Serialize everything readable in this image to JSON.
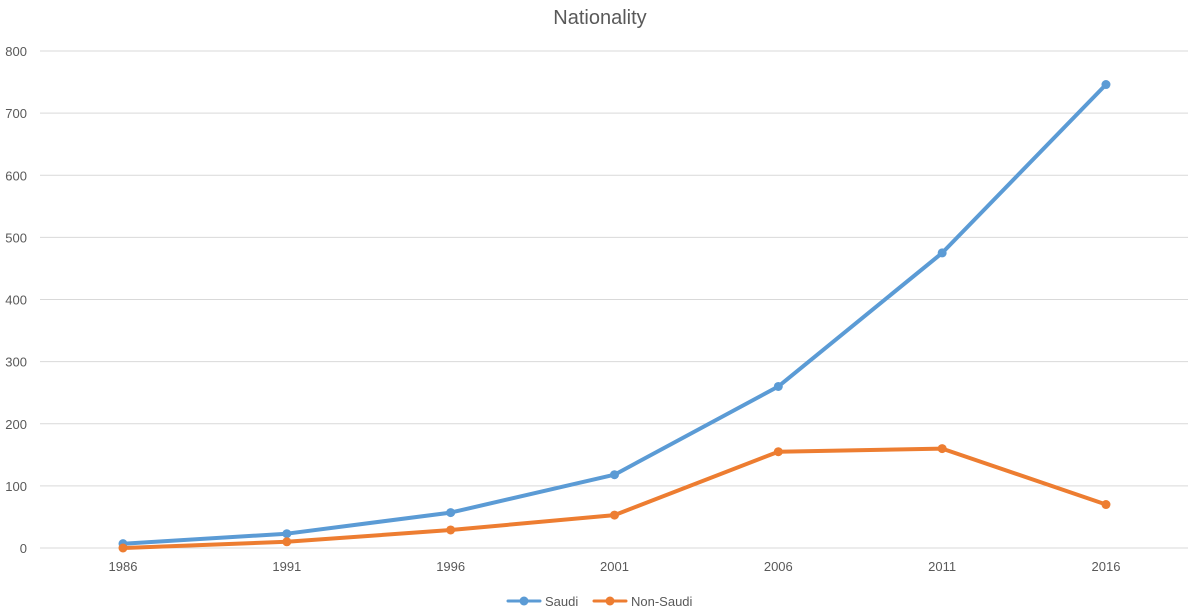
{
  "chart_data": {
    "type": "line",
    "title": "Nationality",
    "xlabel": "",
    "ylabel": "",
    "categories": [
      "1986",
      "1991",
      "1996",
      "2001",
      "2006",
      "2011",
      "2016"
    ],
    "series": [
      {
        "name": "Saudi",
        "values": [
          7,
          23,
          57,
          118,
          260,
          475,
          746
        ]
      },
      {
        "name": "Non-Saudi",
        "values": [
          0,
          10,
          29,
          53,
          155,
          160,
          70
        ]
      }
    ],
    "ylim": [
      0,
      800
    ],
    "yticks": [
      "0",
      "100",
      "200",
      "300",
      "400",
      "500",
      "600",
      "700",
      "800"
    ],
    "grid": true,
    "legend": "bottom-center",
    "colors": {
      "Saudi": "#5b9bd5",
      "Non-Saudi": "#ed7d31",
      "grid": "#d9d9d9",
      "text": "#595959"
    }
  }
}
